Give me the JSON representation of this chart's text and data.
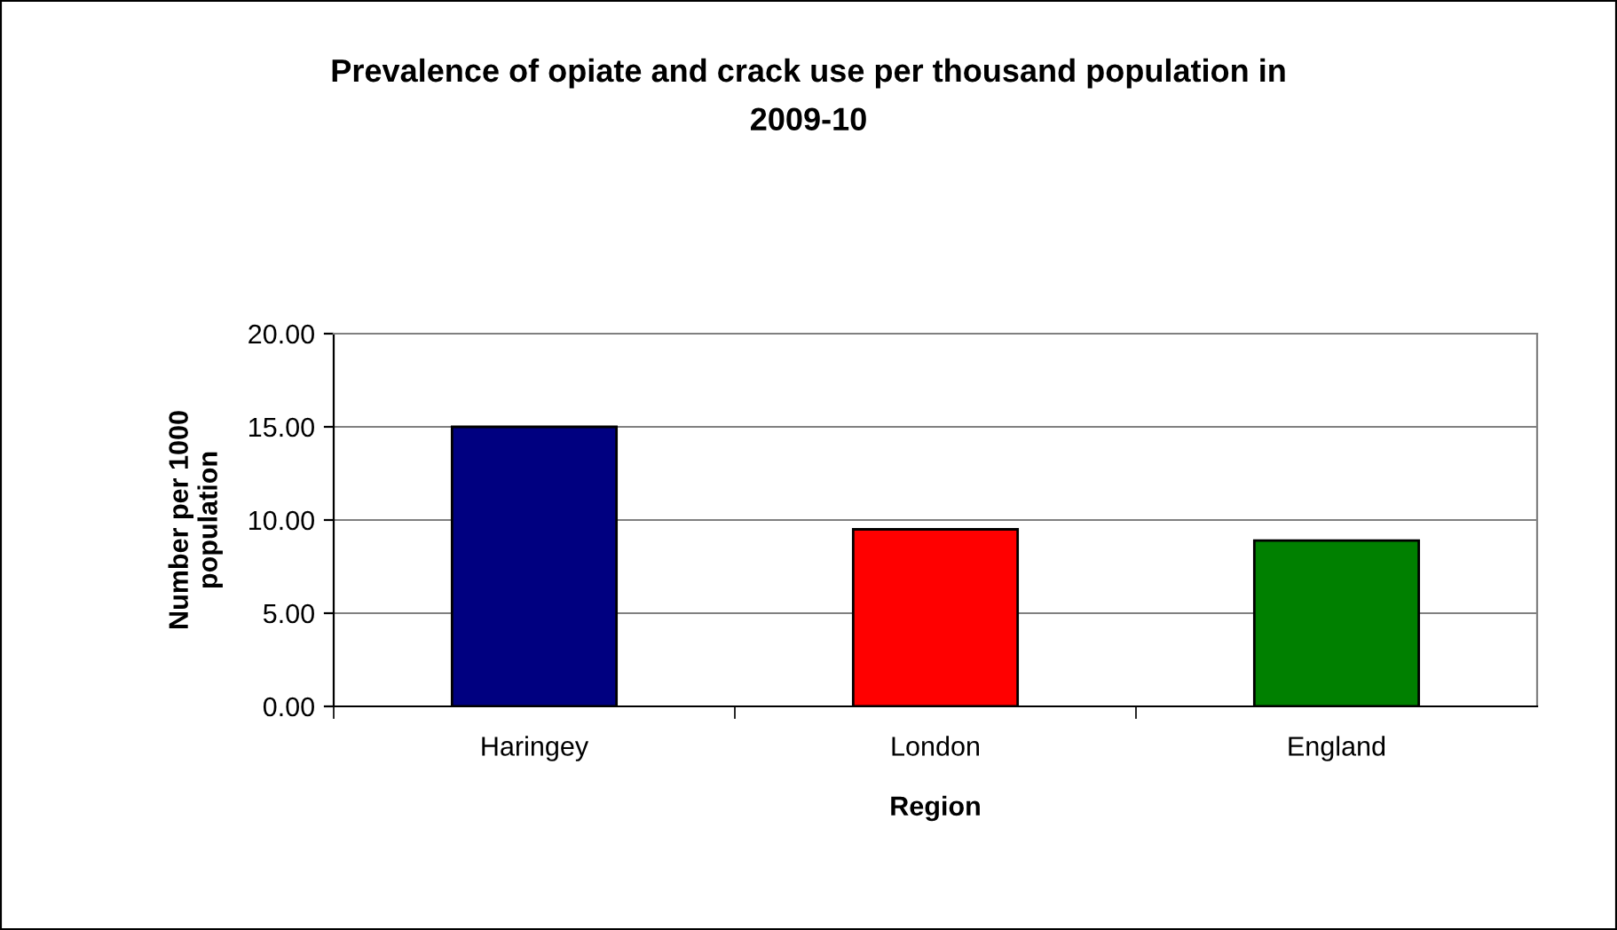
{
  "chart_data": {
    "type": "bar",
    "title": "Prevalence of opiate and crack use per thousand population in\n2009-10",
    "xlabel": "Region",
    "ylabel": "Number per 1000\npopulation",
    "categories": [
      "Haringey",
      "London",
      "England"
    ],
    "values": [
      15.0,
      9.5,
      8.9
    ],
    "colors": [
      "#000080",
      "#ff0000",
      "#008000"
    ],
    "ylim": [
      0,
      20
    ],
    "yticks": [
      {
        "value": 0,
        "label": "0.00"
      },
      {
        "value": 5,
        "label": "5.00"
      },
      {
        "value": 10,
        "label": "10.00"
      },
      {
        "value": 15,
        "label": "15.00"
      },
      {
        "value": 20,
        "label": "20.00"
      }
    ],
    "grid": "y",
    "legend": false
  }
}
